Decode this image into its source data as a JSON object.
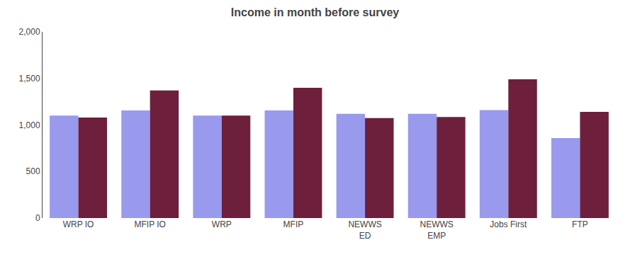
{
  "chart_data": {
    "type": "bar",
    "title": "Income in month before survey",
    "categories": [
      "WRP IO",
      "MFIP IO",
      "WRP",
      "MFIP",
      "NEWWS\nED",
      "NEWWS\nEMP",
      "Jobs First",
      "FTP"
    ],
    "series": [
      {
        "color": "#9999ee",
        "values": [
          1100,
          1155,
          1100,
          1155,
          1120,
          1120,
          1160,
          860
        ]
      },
      {
        "color": "#6e1f3c",
        "values": [
          1080,
          1370,
          1100,
          1400,
          1075,
          1085,
          1490,
          1140
        ]
      }
    ],
    "ylim": [
      0,
      2000
    ],
    "yticks": [
      0,
      500,
      {
        "value": 1000,
        "label": "1,000"
      },
      {
        "value": 1500,
        "label": "1,500"
      },
      {
        "value": 2000,
        "label": "2,000"
      }
    ],
    "grid": false
  }
}
